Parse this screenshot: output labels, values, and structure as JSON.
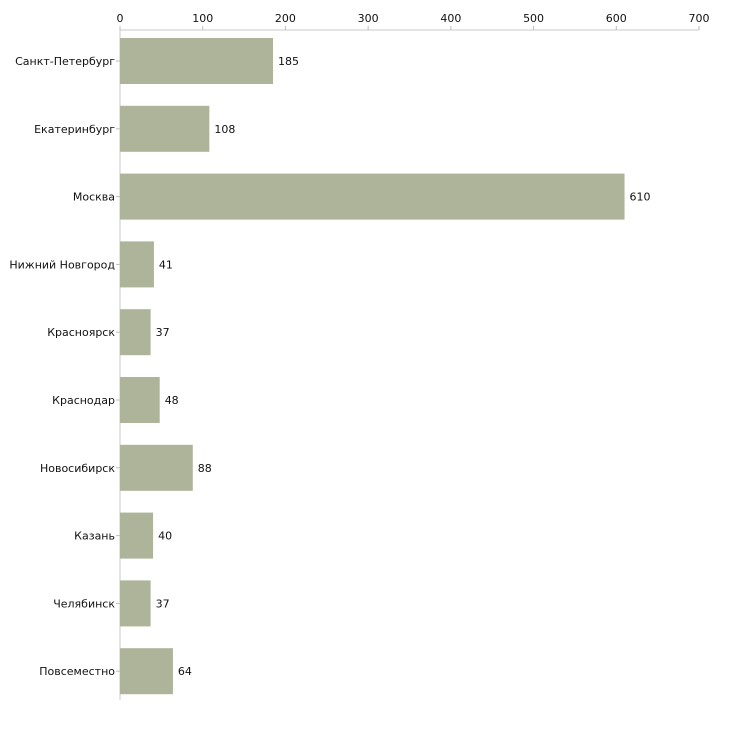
{
  "chart_data": {
    "type": "bar",
    "orientation": "horizontal",
    "title": "",
    "xlabel": "",
    "ylabel": "",
    "xlim": [
      0,
      700
    ],
    "ticks": [
      0,
      100,
      200,
      300,
      400,
      500,
      600,
      700
    ],
    "categories": [
      "Санкт-Петербург",
      "Екатеринбург",
      "Москва",
      "Нижний Новгород",
      "Красноярск",
      "Краснодар",
      "Новосибирск",
      "Казань",
      "Челябинск",
      "Повсеместно"
    ],
    "values": [
      185,
      108,
      610,
      41,
      37,
      48,
      88,
      40,
      37,
      64
    ],
    "bar_color": "#adb499",
    "grid": false,
    "legend": "none"
  }
}
